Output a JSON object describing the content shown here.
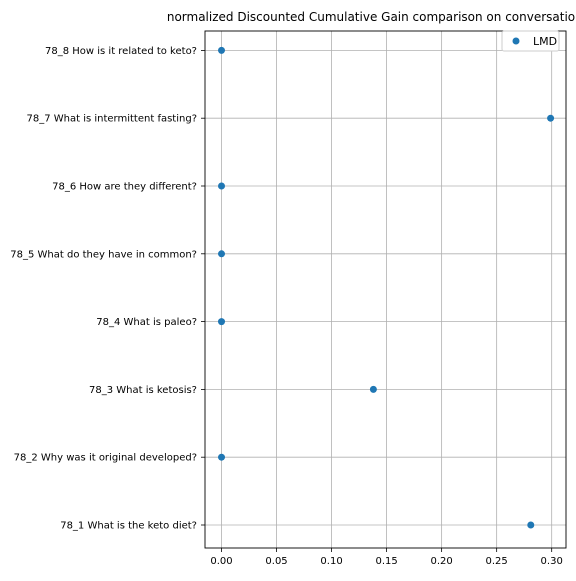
{
  "chart_data": {
    "type": "scatter",
    "title": "normalized Discounted Cumulative Gain comparison on conversatio",
    "xlabel": "",
    "ylabel": "",
    "xlim": [
      -0.015,
      0.313
    ],
    "xticks": [
      0.0,
      0.05,
      0.1,
      0.15,
      0.2,
      0.25,
      0.3
    ],
    "xtick_labels": [
      "0.00",
      "0.05",
      "0.10",
      "0.15",
      "0.20",
      "0.25",
      "0.30"
    ],
    "categories": [
      "78_1 What is the keto diet?",
      "78_2 Why was it original developed?",
      "78_3 What is ketosis?",
      "78_4 What is paleo?",
      "78_5 What do they have in common?",
      "78_6 How are they different?",
      "78_7 What is intermittent fasting?",
      "78_8 How is it related to keto?"
    ],
    "series": [
      {
        "name": "LMD",
        "color": "#1f77b4",
        "values": [
          0.281,
          0.0,
          0.138,
          0.0,
          0.0,
          0.0,
          0.299,
          0.0
        ]
      }
    ],
    "grid": true,
    "legend_position": "top-right"
  }
}
